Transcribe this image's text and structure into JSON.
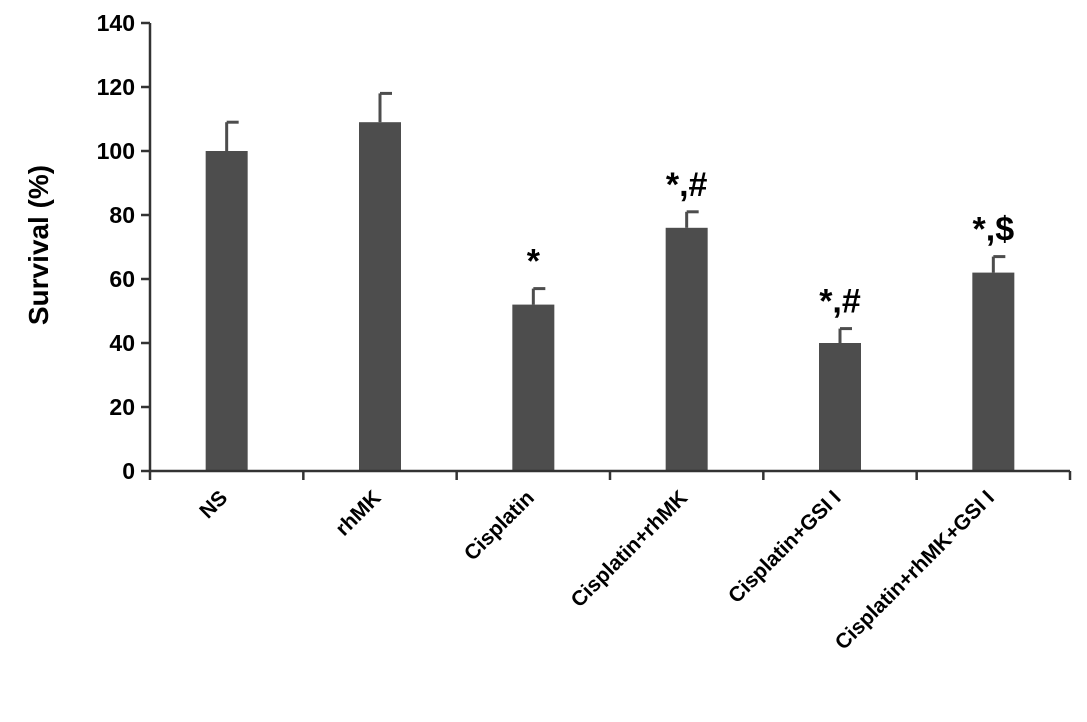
{
  "chart_data": {
    "type": "bar",
    "title": "",
    "xlabel": "",
    "ylabel": "Survival (%)",
    "ylim": [
      0,
      140
    ],
    "yticks": [
      0,
      20,
      40,
      60,
      80,
      100,
      120,
      140
    ],
    "ytick_labels": [
      "0",
      "20",
      "40",
      "60",
      "80",
      "100",
      "120",
      "140"
    ],
    "grid": false,
    "legend": "none",
    "categories": [
      "NS",
      "rhMK",
      "Cisplatin",
      "Cisplatin+rhMK",
      "Cisplatin+GSI I",
      "Cisplatin+rhMK+GSI I"
    ],
    "values": [
      100,
      109,
      52,
      76,
      40,
      62
    ],
    "error_upper": [
      9,
      9,
      5,
      5,
      4.5,
      5
    ],
    "annotations": [
      "",
      "",
      "*",
      "*,#",
      "*,#",
      "*,$"
    ],
    "colors": {
      "bar": "#4d4d4d",
      "axis": "#333333"
    }
  }
}
